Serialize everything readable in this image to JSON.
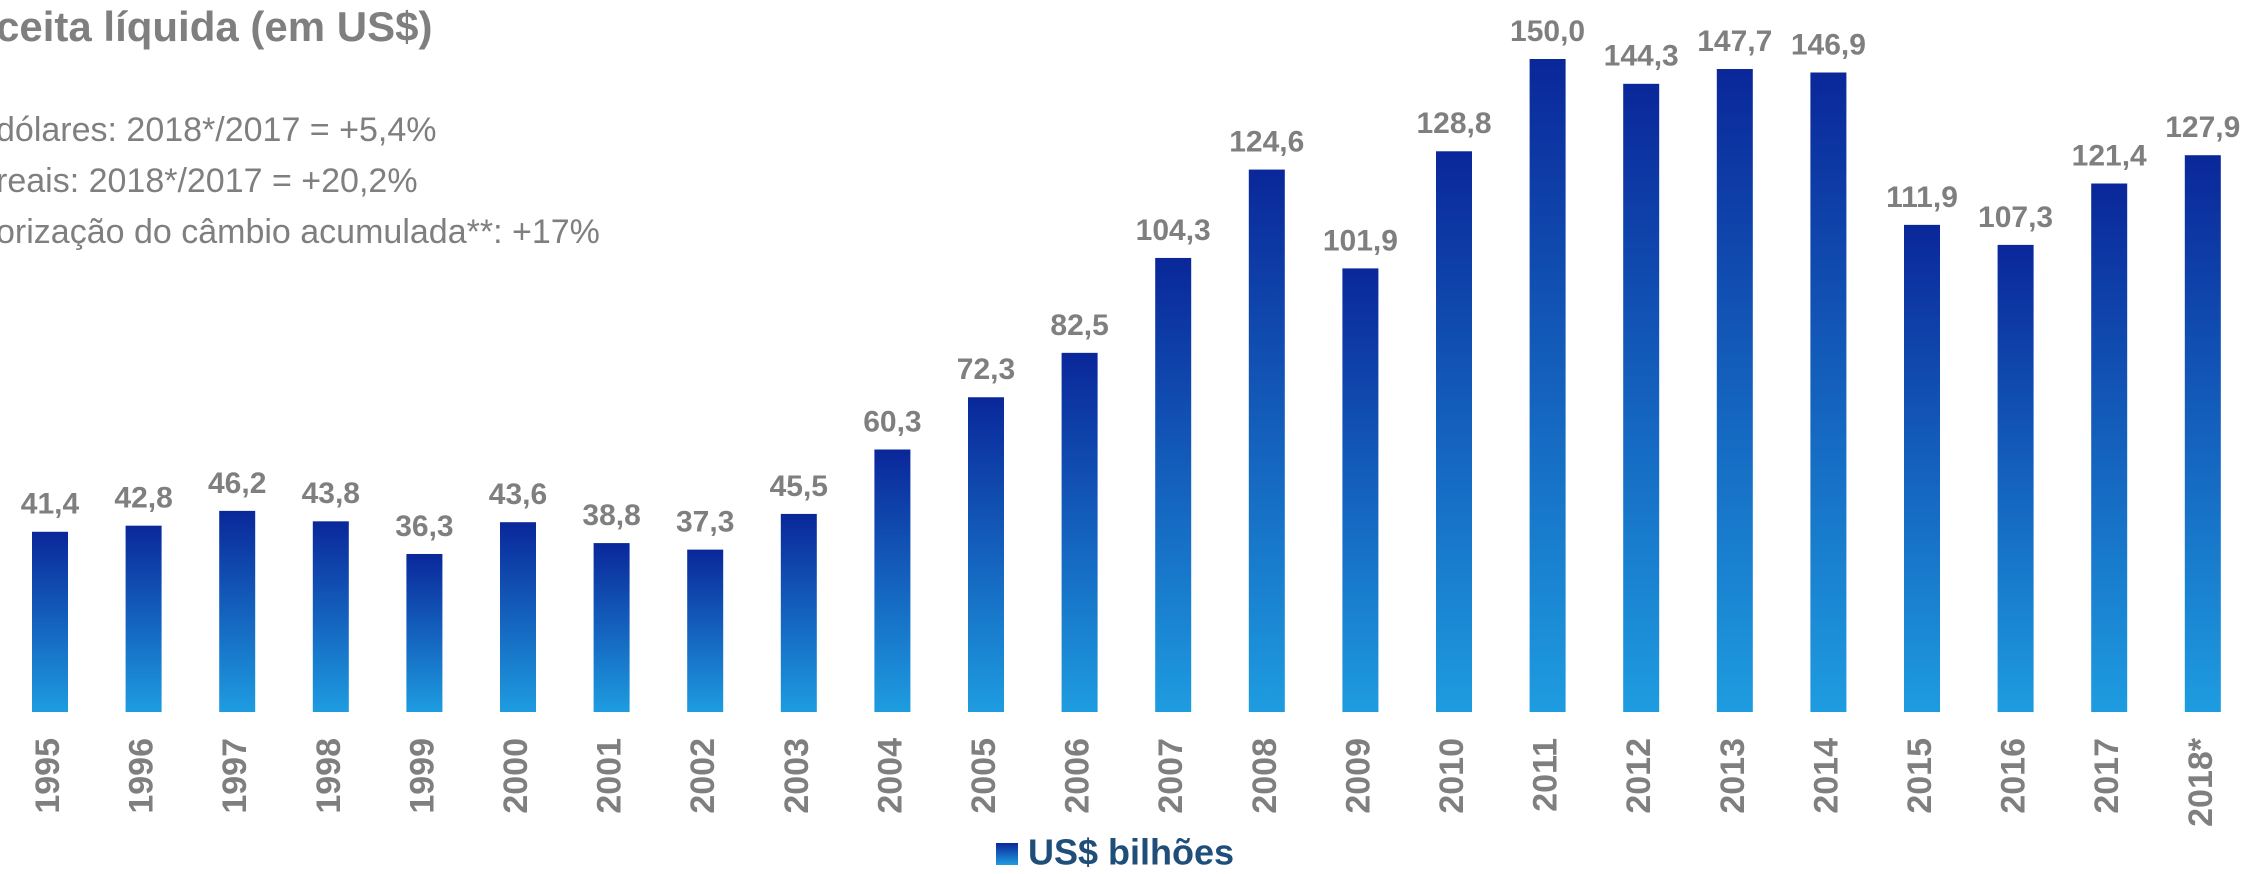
{
  "chart_data": {
    "type": "bar",
    "title": "ceita líquida (em US$)",
    "subtitle": [
      "dólares: 2018*/2017 = +5,4%",
      "reais: 2018*/2017 = +20,2%",
      "orização do câmbio acumulada**: +17%"
    ],
    "categories": [
      "1995",
      "1996",
      "1997",
      "1998",
      "1999",
      "2000",
      "2001",
      "2002",
      "2003",
      "2004",
      "2005",
      "2006",
      "2007",
      "2008",
      "2009",
      "2010",
      "2011",
      "2012",
      "2013",
      "2014",
      "2015",
      "2016",
      "2017",
      "2018*"
    ],
    "series": [
      {
        "name": "US$ bilhões",
        "color": [
          "#0a279a",
          "#1e9ce0"
        ],
        "values": [
          41.4,
          42.8,
          46.2,
          43.8,
          36.3,
          43.6,
          38.8,
          37.3,
          45.5,
          60.3,
          72.3,
          82.5,
          104.3,
          124.6,
          101.9,
          128.8,
          150.0,
          144.3,
          147.7,
          146.9,
          111.9,
          107.3,
          121.4,
          127.9
        ],
        "value_labels": [
          "41,4",
          "42,8",
          "46,2",
          "43,8",
          "36,3",
          "43,6",
          "38,8",
          "37,3",
          "45,5",
          "60,3",
          "72,3",
          "82,5",
          "104,3",
          "124,6",
          "101,9",
          "128,8",
          "150,0",
          "144,3",
          "147,7",
          "146,9",
          "111,9",
          "107,3",
          "121,4",
          "127,9"
        ]
      }
    ],
    "ylim": [
      0,
      150
    ]
  }
}
